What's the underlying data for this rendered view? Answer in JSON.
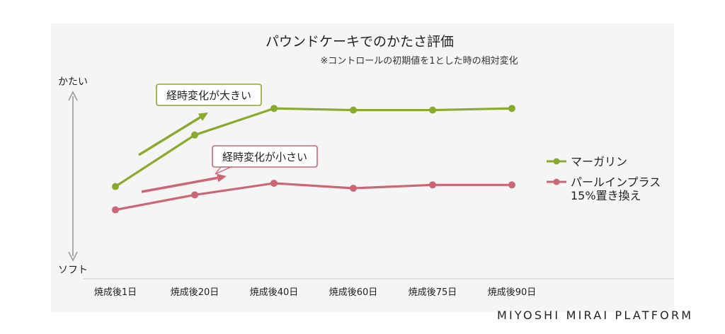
{
  "chart_data": {
    "type": "line",
    "title": "パウンドケーキでのかたさ評価",
    "subtitle": "※コントロールの初期値を1とした時の相対変化",
    "ylabel_top": "かたい",
    "ylabel_bottom": "ソフト",
    "categories": [
      "焼成後1日",
      "焼成後20日",
      "焼成後40日",
      "焼成後60日",
      "焼成後75日",
      "焼成後90日"
    ],
    "ylim": [
      0,
      1
    ],
    "grid": false,
    "legend": "right",
    "series": [
      {
        "name": "マーガリン",
        "name_line2": "",
        "color": "#8aaa2e",
        "values": [
          0.41,
          0.72,
          0.88,
          0.87,
          0.87,
          0.88
        ]
      },
      {
        "name": "パールインプラス",
        "name_line2": "15%置き換え",
        "color": "#cc6674",
        "values": [
          0.27,
          0.36,
          0.43,
          0.4,
          0.42,
          0.42
        ]
      }
    ],
    "annotations": [
      {
        "text": "経時変化が大きい",
        "series": 0
      },
      {
        "text": "経時変化が小さい",
        "series": 1
      }
    ]
  },
  "brand": "MIYOSHI MIRAI PLATFORM"
}
